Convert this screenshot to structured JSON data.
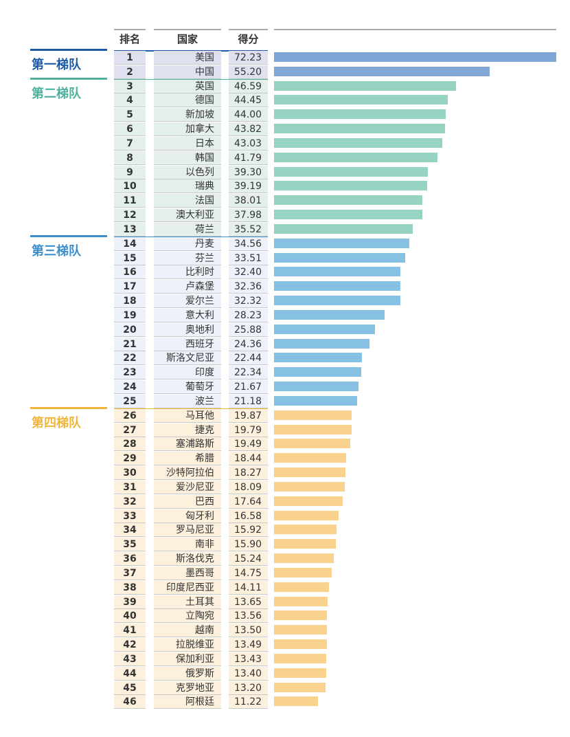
{
  "chart_data": {
    "type": "bar",
    "orientation": "horizontal",
    "headers": {
      "rank": "排名",
      "country": "国家",
      "score": "得分"
    },
    "xlim": [
      0,
      72.23
    ],
    "tiers": [
      {
        "label": "第一梯队",
        "ranks": [
          1,
          2
        ],
        "text_color": "#1f5aa8",
        "bar_color": "#7fa6d4",
        "row_bg": "#dfe0f0"
      },
      {
        "label": "第二梯队",
        "ranks": [
          3,
          13
        ],
        "text_color": "#4fb19d",
        "bar_color": "#97d3c3",
        "row_bg": "#e4efea"
      },
      {
        "label": "第三梯队",
        "ranks": [
          14,
          25
        ],
        "text_color": "#3d8fcc",
        "bar_color": "#86c0e3",
        "row_bg": "#edf1f9"
      },
      {
        "label": "第四梯队",
        "ranks": [
          26,
          46
        ],
        "text_color": "#f0b63c",
        "bar_color": "#f9d38e",
        "row_bg": "#fdf0dc"
      }
    ],
    "rows": [
      {
        "rank": "1",
        "country": "美国",
        "score": "72.23"
      },
      {
        "rank": "2",
        "country": "中国",
        "score": "55.20"
      },
      {
        "rank": "3",
        "country": "英国",
        "score": "46.59"
      },
      {
        "rank": "4",
        "country": "德国",
        "score": "44.45"
      },
      {
        "rank": "5",
        "country": "新加坡",
        "score": "44.00"
      },
      {
        "rank": "6",
        "country": "加拿大",
        "score": "43.82"
      },
      {
        "rank": "7",
        "country": "日本",
        "score": "43.03"
      },
      {
        "rank": "8",
        "country": "韩国",
        "score": "41.79"
      },
      {
        "rank": "9",
        "country": "以色列",
        "score": "39.30"
      },
      {
        "rank": "10",
        "country": "瑞典",
        "score": "39.19"
      },
      {
        "rank": "11",
        "country": "法国",
        "score": "38.01"
      },
      {
        "rank": "12",
        "country": "澳大利亚",
        "score": "37.98"
      },
      {
        "rank": "13",
        "country": "荷兰",
        "score": "35.52"
      },
      {
        "rank": "14",
        "country": "丹麦",
        "score": "34.56"
      },
      {
        "rank": "15",
        "country": "芬兰",
        "score": "33.51"
      },
      {
        "rank": "16",
        "country": "比利时",
        "score": "32.40"
      },
      {
        "rank": "17",
        "country": "卢森堡",
        "score": "32.36"
      },
      {
        "rank": "18",
        "country": "爱尔兰",
        "score": "32.32"
      },
      {
        "rank": "19",
        "country": "意大利",
        "score": "28.23"
      },
      {
        "rank": "20",
        "country": "奥地利",
        "score": "25.88"
      },
      {
        "rank": "21",
        "country": "西班牙",
        "score": "24.36"
      },
      {
        "rank": "22",
        "country": "斯洛文尼亚",
        "score": "22.44"
      },
      {
        "rank": "23",
        "country": "印度",
        "score": "22.34"
      },
      {
        "rank": "24",
        "country": "葡萄牙",
        "score": "21.67"
      },
      {
        "rank": "25",
        "country": "波兰",
        "score": "21.18"
      },
      {
        "rank": "26",
        "country": "马耳他",
        "score": "19.87"
      },
      {
        "rank": "27",
        "country": "捷克",
        "score": "19.79"
      },
      {
        "rank": "28",
        "country": "塞浦路斯",
        "score": "19.49"
      },
      {
        "rank": "29",
        "country": "希腊",
        "score": "18.44"
      },
      {
        "rank": "30",
        "country": "沙特阿拉伯",
        "score": "18.27"
      },
      {
        "rank": "31",
        "country": "爱沙尼亚",
        "score": "18.09"
      },
      {
        "rank": "32",
        "country": "巴西",
        "score": "17.64"
      },
      {
        "rank": "33",
        "country": "匈牙利",
        "score": "16.58"
      },
      {
        "rank": "34",
        "country": "罗马尼亚",
        "score": "15.92"
      },
      {
        "rank": "35",
        "country": "南非",
        "score": "15.90"
      },
      {
        "rank": "36",
        "country": "斯洛伐克",
        "score": "15.24"
      },
      {
        "rank": "37",
        "country": "墨西哥",
        "score": "14.75"
      },
      {
        "rank": "38",
        "country": "印度尼西亚",
        "score": "14.11"
      },
      {
        "rank": "39",
        "country": "土耳其",
        "score": "13.65"
      },
      {
        "rank": "40",
        "country": "立陶宛",
        "score": "13.56"
      },
      {
        "rank": "41",
        "country": "越南",
        "score": "13.50"
      },
      {
        "rank": "42",
        "country": "拉脱维亚",
        "score": "13.49"
      },
      {
        "rank": "43",
        "country": "保加利亚",
        "score": "13.43"
      },
      {
        "rank": "44",
        "country": "俄罗斯",
        "score": "13.40"
      },
      {
        "rank": "45",
        "country": "克罗地亚",
        "score": "13.20"
      },
      {
        "rank": "46",
        "country": "阿根廷",
        "score": "11.22"
      }
    ]
  }
}
